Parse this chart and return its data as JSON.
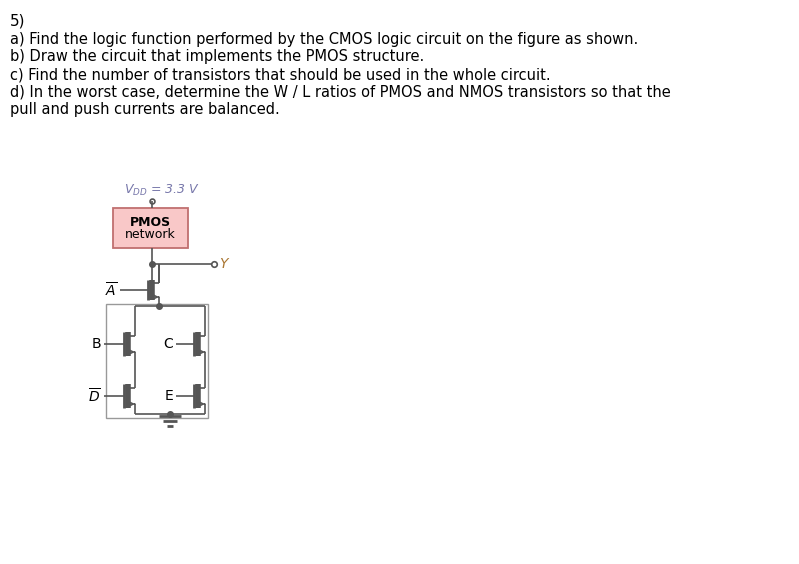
{
  "title_num": "5)",
  "questions": [
    "a) Find the logic function performed by the CMOS logic circuit on the figure as shown.",
    "b) Draw the circuit that implements the PMOS structure.",
    "c) Find the number of transistors that should be used in the whole circuit.",
    "d) In the worst case, determine the W / L ratios of PMOS and NMOS transistors so that the",
    "pull and push currents are balanced."
  ],
  "bg_color": "#ffffff",
  "text_color": "#000000",
  "pink_fill": "#f9c8c8",
  "pink_edge": "#c07070",
  "line_color": "#555555",
  "vdd_color": "#7777aa",
  "y_color": "#aa7733",
  "text_fontsize": 10.5,
  "title_fontsize": 11
}
